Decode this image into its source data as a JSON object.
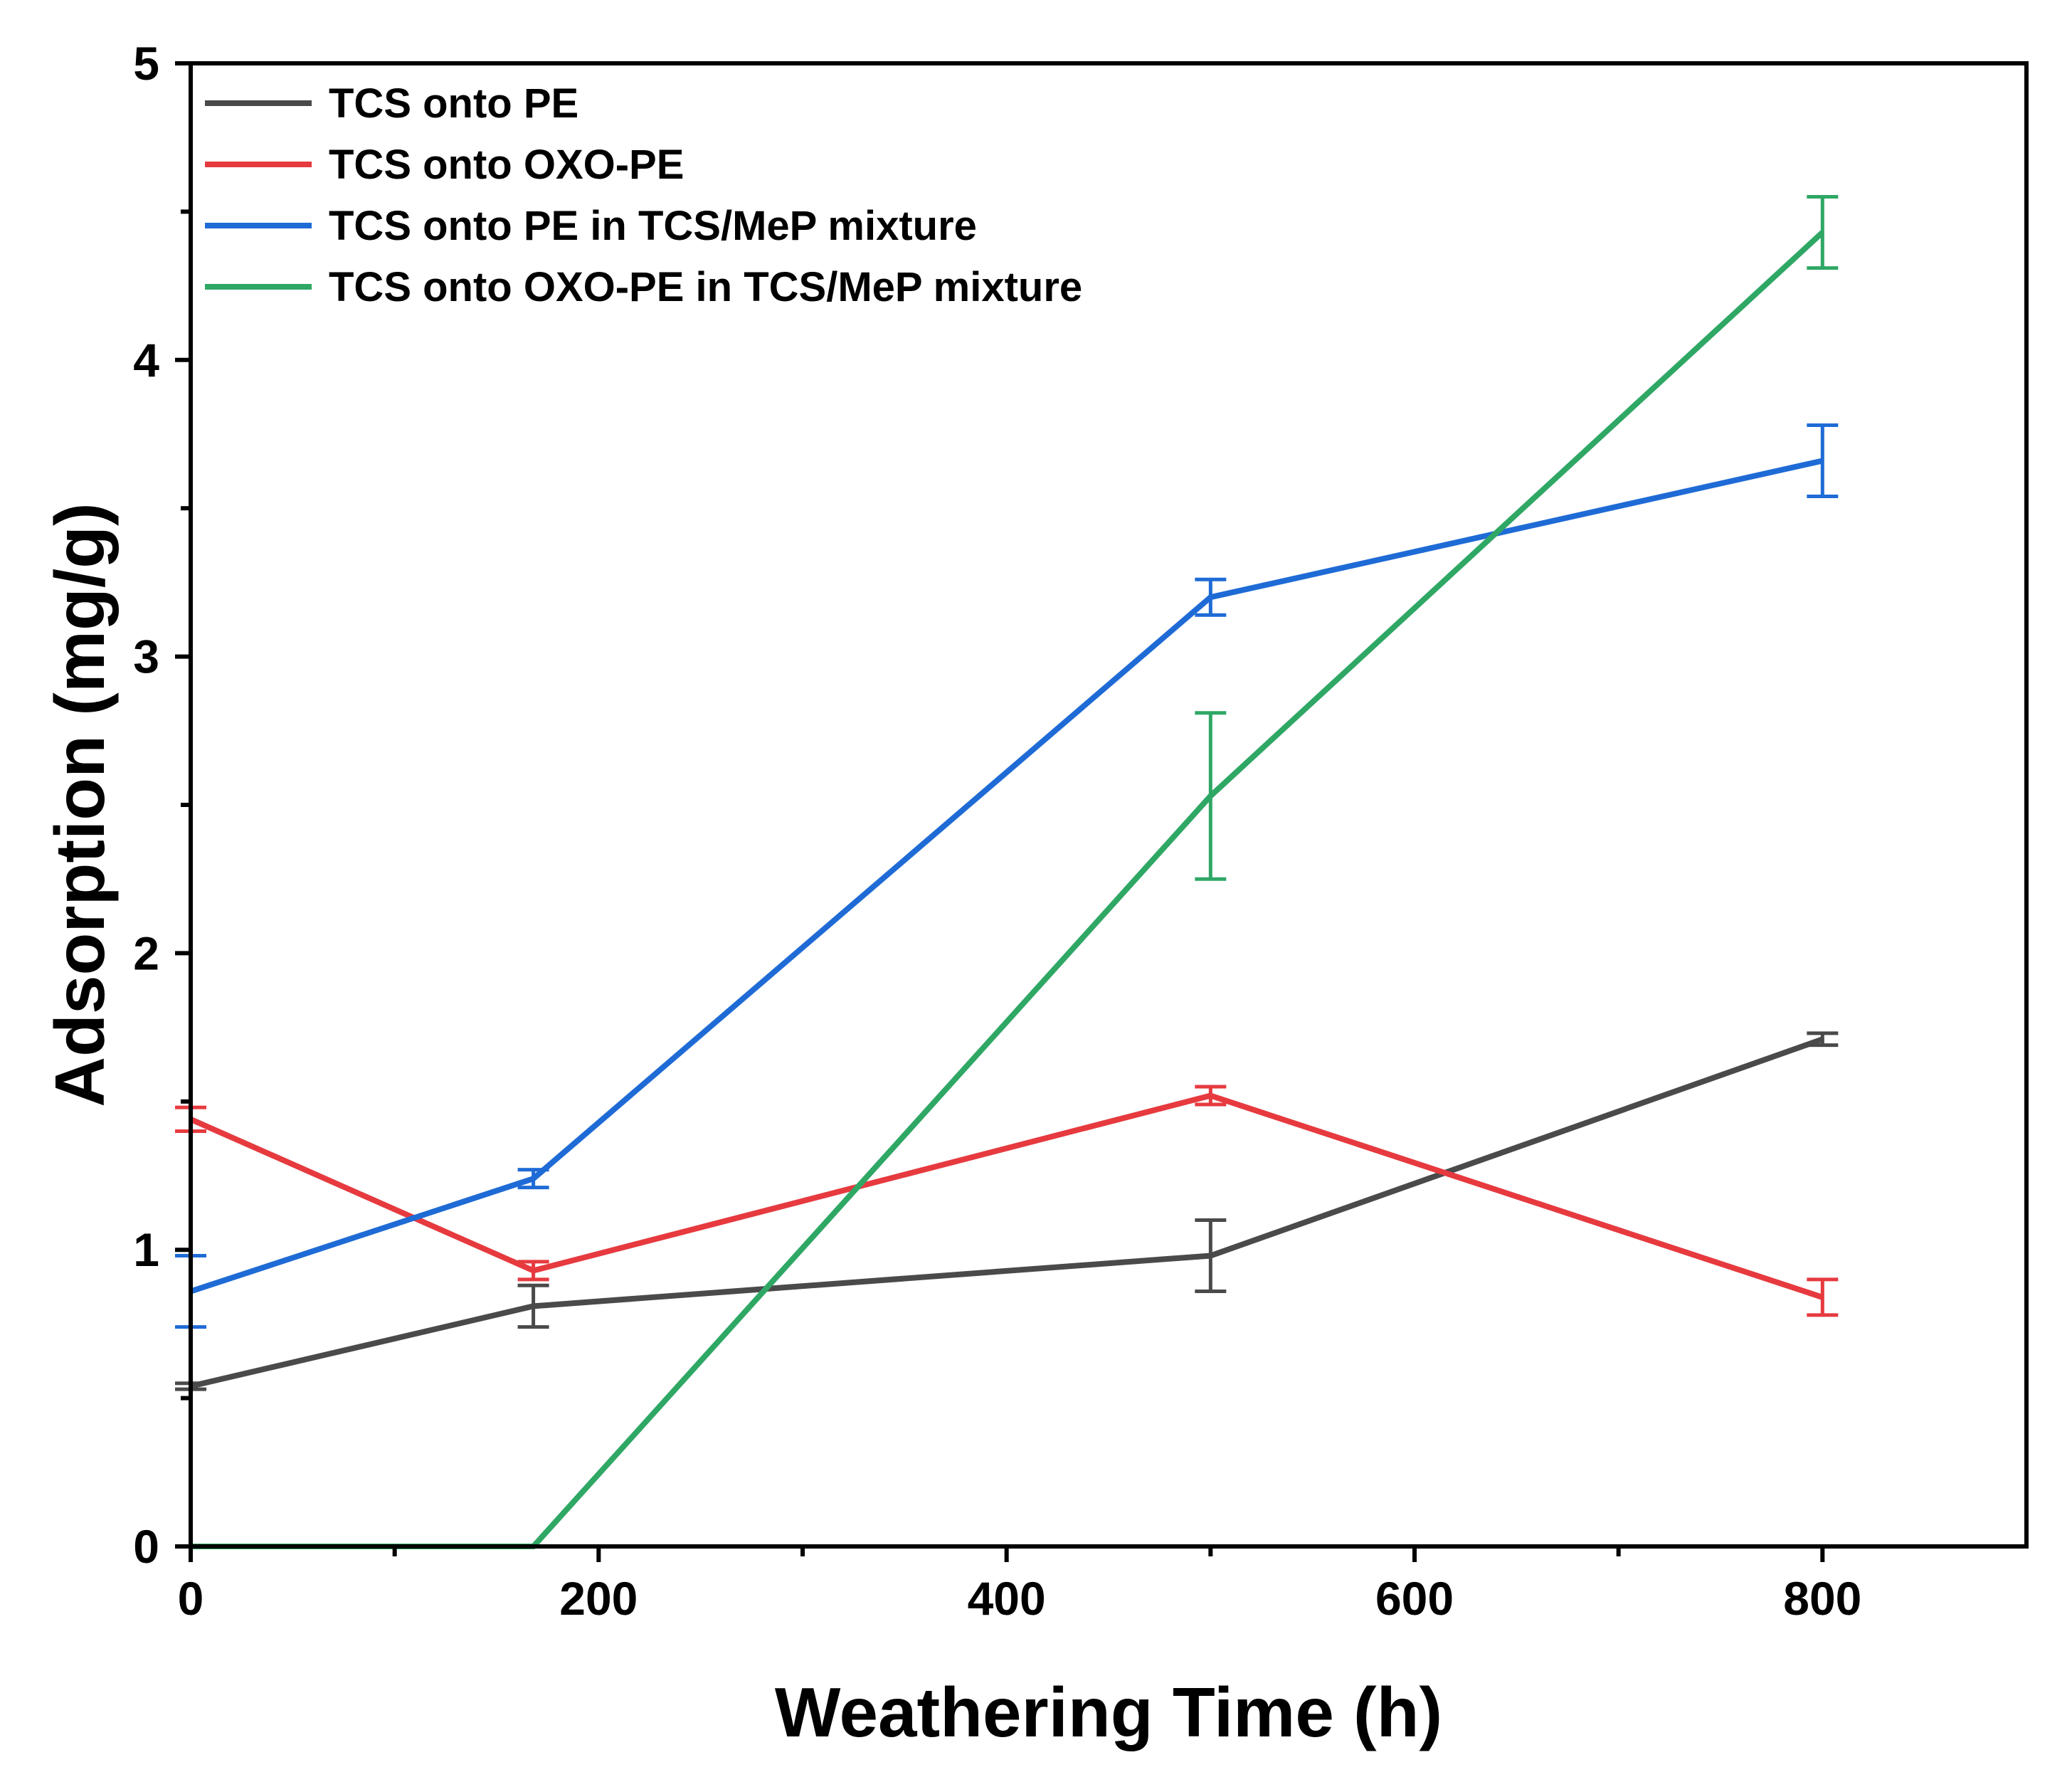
{
  "chart_data": {
    "type": "line",
    "title": "",
    "xlabel": "Weathering Time (h)",
    "ylabel": "Adsorption (mg/g)",
    "xlim": [
      0,
      900
    ],
    "ylim": [
      0,
      5
    ],
    "x_ticks": [
      0,
      200,
      400,
      600,
      800
    ],
    "x_minor_ticks": [
      100,
      300,
      500,
      700
    ],
    "y_ticks": [
      0,
      1,
      2,
      3,
      4,
      5
    ],
    "y_minor_ticks": [
      0.5,
      1.5,
      2.5,
      3.5,
      4.5
    ],
    "grid": false,
    "legend_position": "top-left",
    "series": [
      {
        "name": "TCS onto PE",
        "color": "#4a4a4a",
        "points": [
          {
            "x": 0,
            "y": 0.54,
            "err": 0.01
          },
          {
            "x": 168,
            "y": 0.81,
            "err": 0.07
          },
          {
            "x": 500,
            "y": 0.98,
            "err": 0.12
          },
          {
            "x": 800,
            "y": 1.71,
            "err": 0.02
          }
        ]
      },
      {
        "name": "TCS onto OXO-PE",
        "color": "#e63a3f",
        "points": [
          {
            "x": 0,
            "y": 1.44,
            "err": 0.04
          },
          {
            "x": 168,
            "y": 0.93,
            "err": 0.03
          },
          {
            "x": 500,
            "y": 1.52,
            "err": 0.03
          },
          {
            "x": 800,
            "y": 0.84,
            "err": 0.06
          }
        ]
      },
      {
        "name": "TCS onto PE in TCS/MeP mixture",
        "color": "#1f6bd6",
        "points": [
          {
            "x": 0,
            "y": 0.86,
            "err": 0.12
          },
          {
            "x": 168,
            "y": 1.24,
            "err": 0.03
          },
          {
            "x": 500,
            "y": 3.2,
            "err": 0.06
          },
          {
            "x": 800,
            "y": 3.66,
            "err": 0.12
          }
        ]
      },
      {
        "name": "TCS onto OXO-PE in TCS/MeP mixture",
        "color": "#2fa765",
        "points": [
          {
            "x": 0,
            "y": 0,
            "err": 0
          },
          {
            "x": 168,
            "y": 0,
            "err": 0
          },
          {
            "x": 500,
            "y": 2.53,
            "err": 0.28
          },
          {
            "x": 800,
            "y": 4.43,
            "err": 0.12
          }
        ]
      }
    ]
  }
}
